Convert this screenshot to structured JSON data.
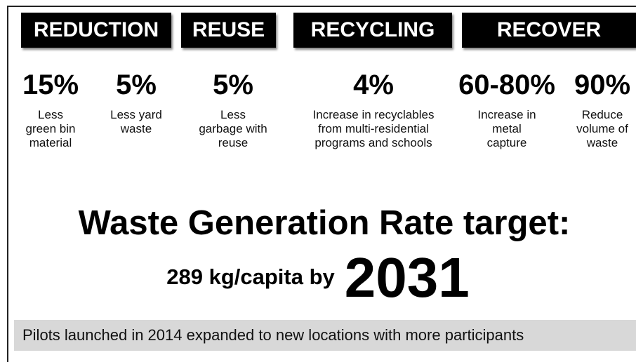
{
  "headers": [
    "REDUCTION",
    "REUSE",
    "RECYCLING",
    "RECOVER"
  ],
  "stats": [
    {
      "value": "15%",
      "desc": [
        "Less",
        "green bin",
        "material"
      ]
    },
    {
      "value": "5%",
      "desc": [
        "Less yard",
        "waste"
      ]
    },
    {
      "value": "5%",
      "desc": [
        "Less",
        "garbage with",
        "reuse"
      ]
    },
    {
      "value": "4%",
      "desc": [
        "Increase in recyclables",
        "from multi-residential",
        "programs and schools"
      ]
    },
    {
      "value": "60-80%",
      "desc": [
        "Increase in",
        "metal",
        "capture"
      ]
    },
    {
      "value": "90%",
      "desc": [
        "Reduce",
        "volume of",
        "waste"
      ]
    }
  ],
  "target": {
    "title": "Waste Generation Rate target:",
    "line": "289 kg/capita by",
    "year": "2031"
  },
  "footer": "Pilots launched in 2014 expanded to new locations with more participants"
}
